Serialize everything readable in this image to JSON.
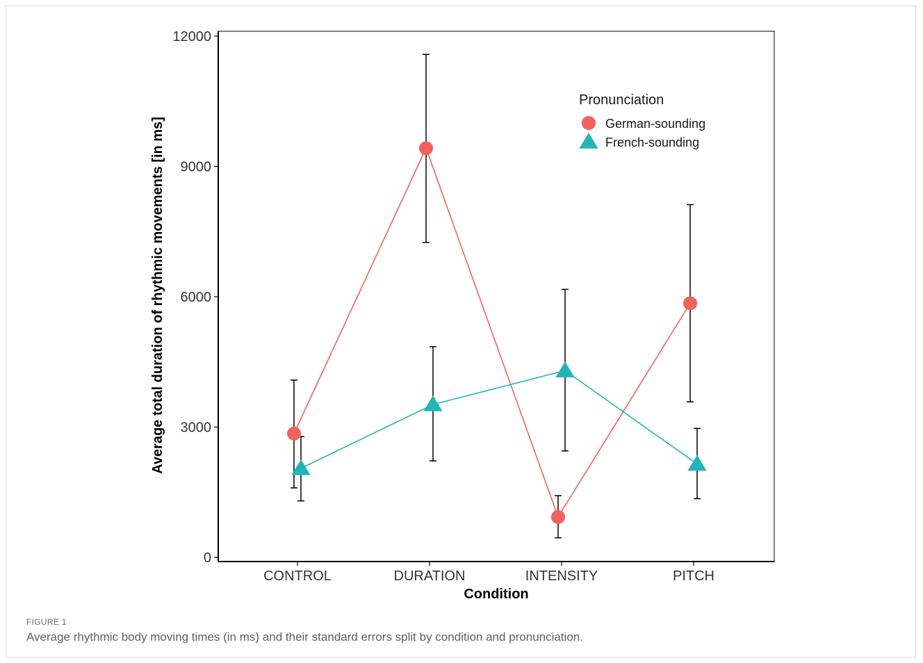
{
  "figure": {
    "label": "FIGURE 1",
    "caption": "Average rhythmic body moving times (in ms) and their standard errors split by condition and pronunciation."
  },
  "chart_data": {
    "type": "line",
    "xlabel": "Condition",
    "ylabel": "Average total duration of rhythmic movements [in ms]",
    "categories": [
      "CONTROL",
      "DURATION",
      "INTENSITY",
      "PITCH"
    ],
    "ylim": [
      0,
      12000
    ],
    "yticks": [
      0,
      3000,
      6000,
      9000,
      12000
    ],
    "grid": false,
    "legend": {
      "title": "Pronunciation",
      "position": "top-right"
    },
    "series": [
      {
        "name": "German-sounding",
        "marker": "circle",
        "color": "#f0625d",
        "values": [
          2850,
          9420,
          930,
          5850
        ],
        "error_low": [
          1600,
          7250,
          450,
          3580
        ],
        "error_high": [
          4080,
          11580,
          1420,
          8120
        ]
      },
      {
        "name": "French-sounding",
        "marker": "triangle",
        "color": "#22b4b7",
        "values": [
          2050,
          3520,
          4300,
          2150
        ],
        "error_low": [
          1300,
          2220,
          2450,
          1350
        ],
        "error_high": [
          2780,
          4850,
          6170,
          2970
        ]
      }
    ]
  }
}
